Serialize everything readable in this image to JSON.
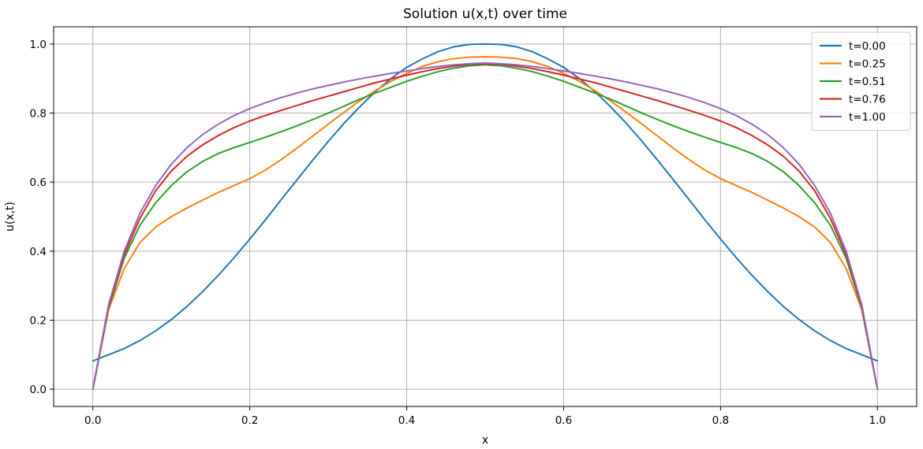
{
  "chart_data": {
    "type": "line",
    "title": "Solution u(x,t) over time",
    "xlabel": "x",
    "ylabel": "u(x,t)",
    "xlim": [
      -0.05,
      1.05
    ],
    "ylim": [
      -0.05,
      1.05
    ],
    "xticks": [
      0.0,
      0.2,
      0.4,
      0.6,
      0.8,
      1.0
    ],
    "xtick_labels": [
      "0.0",
      "0.2",
      "0.4",
      "0.6",
      "0.8",
      "1.0"
    ],
    "yticks": [
      0.0,
      0.2,
      0.4,
      0.6,
      0.8,
      1.0
    ],
    "ytick_labels": [
      "0.0",
      "0.2",
      "0.4",
      "0.6",
      "0.8",
      "1.0"
    ],
    "grid": true,
    "legend_position": "top-right",
    "x": [
      0.0,
      0.02,
      0.04,
      0.06,
      0.08,
      0.1,
      0.12,
      0.14,
      0.16,
      0.18,
      0.2,
      0.22,
      0.24,
      0.26,
      0.28,
      0.3,
      0.32,
      0.34,
      0.36,
      0.38,
      0.4,
      0.42,
      0.44,
      0.46,
      0.48,
      0.5,
      0.52,
      0.54,
      0.56,
      0.58,
      0.6,
      0.62,
      0.64,
      0.66,
      0.68,
      0.7,
      0.72,
      0.74,
      0.76,
      0.78,
      0.8,
      0.82,
      0.84,
      0.86,
      0.88,
      0.9,
      0.92,
      0.94,
      0.96,
      0.98,
      1.0
    ],
    "series": [
      {
        "name": "t=0.00",
        "color": "#1f77b4",
        "values": [
          0.082,
          0.1,
          0.118,
          0.141,
          0.169,
          0.202,
          0.24,
          0.283,
          0.33,
          0.381,
          0.435,
          0.491,
          0.549,
          0.606,
          0.663,
          0.718,
          0.77,
          0.818,
          0.862,
          0.9,
          0.9325,
          0.957,
          0.978,
          0.992,
          0.999,
          1.0,
          0.999,
          0.992,
          0.978,
          0.957,
          0.9325,
          0.9,
          0.862,
          0.818,
          0.77,
          0.718,
          0.663,
          0.606,
          0.549,
          0.491,
          0.435,
          0.381,
          0.33,
          0.283,
          0.24,
          0.202,
          0.169,
          0.141,
          0.118,
          0.1,
          0.082
        ]
      },
      {
        "name": "t=0.25",
        "color": "#ff7f0e",
        "values": [
          0.0,
          0.23,
          0.35,
          0.425,
          0.47,
          0.5,
          0.525,
          0.548,
          0.57,
          0.59,
          0.61,
          0.635,
          0.665,
          0.698,
          0.733,
          0.768,
          0.802,
          0.835,
          0.865,
          0.892,
          0.915,
          0.935,
          0.949,
          0.958,
          0.962,
          0.963,
          0.962,
          0.958,
          0.949,
          0.935,
          0.915,
          0.892,
          0.865,
          0.835,
          0.802,
          0.768,
          0.733,
          0.698,
          0.665,
          0.635,
          0.61,
          0.59,
          0.57,
          0.548,
          0.525,
          0.5,
          0.47,
          0.425,
          0.35,
          0.23,
          0.0
        ]
      },
      {
        "name": "t=0.51",
        "color": "#2ca02c",
        "values": [
          0.0,
          0.235,
          0.38,
          0.475,
          0.54,
          0.59,
          0.63,
          0.66,
          0.683,
          0.7,
          0.715,
          0.73,
          0.746,
          0.763,
          0.781,
          0.8,
          0.82,
          0.84,
          0.858,
          0.875,
          0.892,
          0.907,
          0.92,
          0.93,
          0.937,
          0.94,
          0.937,
          0.93,
          0.92,
          0.907,
          0.892,
          0.875,
          0.858,
          0.84,
          0.82,
          0.8,
          0.781,
          0.763,
          0.746,
          0.73,
          0.715,
          0.7,
          0.683,
          0.66,
          0.63,
          0.59,
          0.54,
          0.475,
          0.38,
          0.235,
          0.0
        ]
      },
      {
        "name": "t=0.76",
        "color": "#d62728",
        "values": [
          0.0,
          0.24,
          0.39,
          0.495,
          0.575,
          0.632,
          0.675,
          0.708,
          0.735,
          0.758,
          0.777,
          0.793,
          0.808,
          0.822,
          0.836,
          0.849,
          0.862,
          0.875,
          0.888,
          0.899,
          0.91,
          0.92,
          0.929,
          0.936,
          0.941,
          0.943,
          0.941,
          0.936,
          0.929,
          0.92,
          0.91,
          0.899,
          0.888,
          0.875,
          0.862,
          0.849,
          0.836,
          0.822,
          0.808,
          0.793,
          0.777,
          0.758,
          0.735,
          0.708,
          0.675,
          0.632,
          0.575,
          0.495,
          0.39,
          0.24,
          0.0
        ]
      },
      {
        "name": "t=1.00",
        "color": "#9467bd",
        "values": [
          0.0,
          0.245,
          0.4,
          0.51,
          0.59,
          0.652,
          0.7,
          0.738,
          0.768,
          0.793,
          0.813,
          0.83,
          0.845,
          0.858,
          0.87,
          0.88,
          0.89,
          0.899,
          0.907,
          0.915,
          0.922,
          0.929,
          0.935,
          0.94,
          0.943,
          0.945,
          0.943,
          0.94,
          0.935,
          0.929,
          0.922,
          0.915,
          0.907,
          0.899,
          0.89,
          0.88,
          0.87,
          0.858,
          0.845,
          0.83,
          0.813,
          0.793,
          0.768,
          0.738,
          0.7,
          0.652,
          0.59,
          0.51,
          0.4,
          0.245,
          0.0
        ]
      }
    ]
  }
}
